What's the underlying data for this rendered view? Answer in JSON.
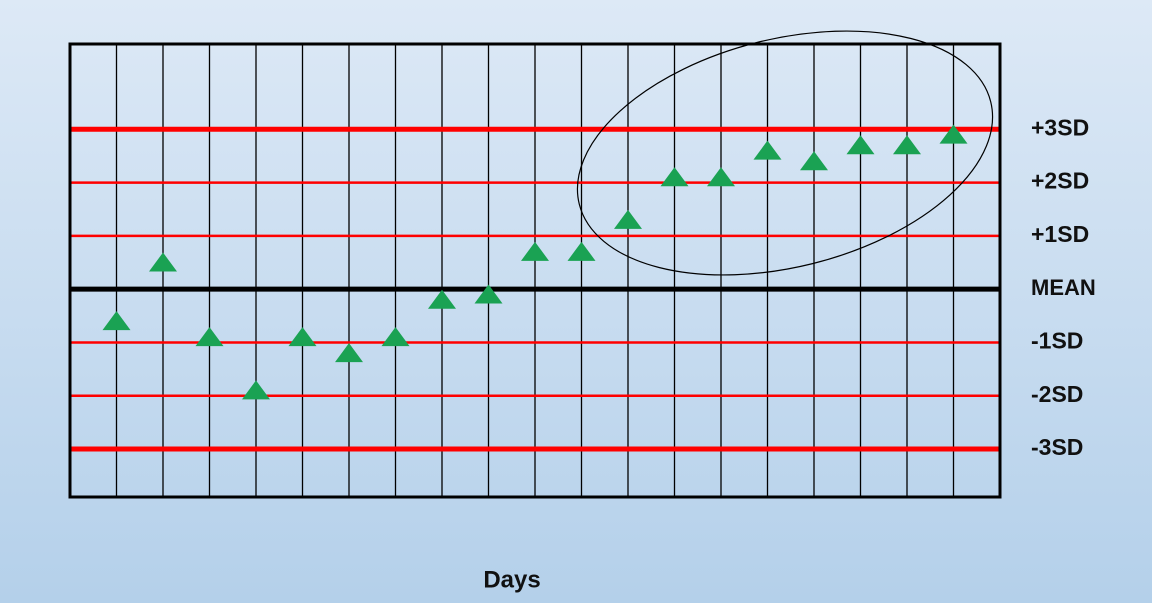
{
  "chart_data": {
    "type": "scatter",
    "x_label": "Days",
    "x": [
      1,
      2,
      3,
      4,
      5,
      6,
      7,
      8,
      9,
      10,
      11,
      12,
      13,
      14,
      15,
      16,
      17,
      18,
      19
    ],
    "xlim": [
      0,
      20
    ],
    "series": [
      {
        "color": "#1aa253",
        "values": [
          -0.6,
          0.5,
          -0.9,
          -1.9,
          -0.9,
          -1.2,
          -0.9,
          -0.2,
          -0.1,
          0.7,
          0.7,
          1.3,
          2.1,
          2.1,
          2.6,
          2.4,
          2.7,
          2.7,
          2.9
        ]
      }
    ],
    "ylim": [
      -3.9,
      4.6
    ],
    "yticks": [
      {
        "value": 3,
        "label": "+3SD"
      },
      {
        "value": 2,
        "label": "+2SD"
      },
      {
        "value": 1,
        "label": "+1SD"
      },
      {
        "value": 0,
        "label": "MEAN"
      },
      {
        "value": -1,
        "label": "-1SD"
      },
      {
        "value": -2,
        "label": "-2SD"
      },
      {
        "value": -3,
        "label": "-3SD"
      }
    ],
    "grid": true,
    "limit_color": "#ff0000",
    "mean_color": "#000000"
  }
}
